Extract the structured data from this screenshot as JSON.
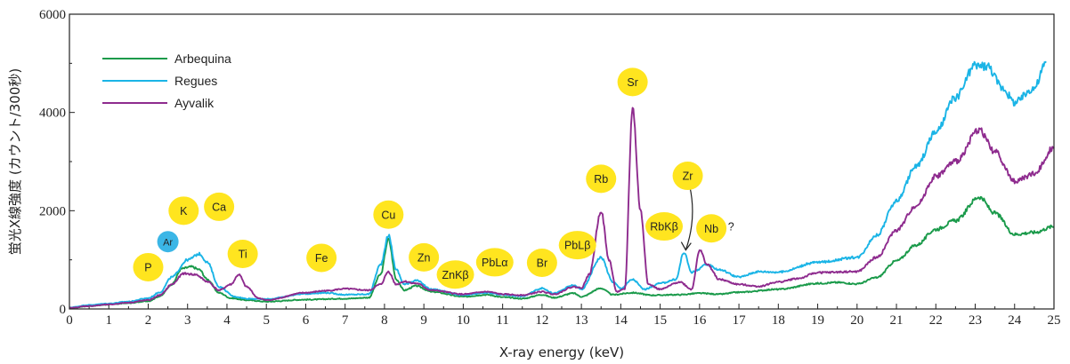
{
  "chart_data": {
    "type": "line",
    "xlabel": "X-ray energy (keV)",
    "ylabel": "蛍光X線強度 (カウント/300秒)",
    "xlim": [
      0,
      25
    ],
    "ylim": [
      0,
      6000
    ],
    "x_ticks": [
      "0",
      "1",
      "2",
      "3",
      "4",
      "5",
      "6",
      "7",
      "8",
      "9",
      "10",
      "11",
      "12",
      "13",
      "14",
      "15",
      "16",
      "17",
      "18",
      "19",
      "20",
      "21",
      "22",
      "23",
      "24",
      "25"
    ],
    "y_ticks": [
      "0",
      "2000",
      "4000",
      "6000"
    ],
    "legend_position": "top-left",
    "series": [
      {
        "name": "Arbequina",
        "color": "#1a9a4a",
        "points": [
          [
            0,
            20
          ],
          [
            0.5,
            60
          ],
          [
            1,
            90
          ],
          [
            1.5,
            120
          ],
          [
            2,
            160
          ],
          [
            2.3,
            260
          ],
          [
            2.6,
            500
          ],
          [
            2.85,
            820
          ],
          [
            3.1,
            860
          ],
          [
            3.3,
            800
          ],
          [
            3.5,
            600
          ],
          [
            3.8,
            330
          ],
          [
            4.1,
            220
          ],
          [
            4.5,
            180
          ],
          [
            5,
            150
          ],
          [
            6,
            190
          ],
          [
            7,
            210
          ],
          [
            7.6,
            230
          ],
          [
            7.9,
            700
          ],
          [
            8.1,
            1420
          ],
          [
            8.3,
            600
          ],
          [
            8.5,
            380
          ],
          [
            8.8,
            470
          ],
          [
            9.2,
            350
          ],
          [
            10,
            250
          ],
          [
            10.6,
            290
          ],
          [
            11,
            240
          ],
          [
            11.5,
            210
          ],
          [
            12,
            290
          ],
          [
            12.3,
            230
          ],
          [
            12.8,
            320
          ],
          [
            13,
            250
          ],
          [
            13.5,
            420
          ],
          [
            13.8,
            290
          ],
          [
            14.3,
            330
          ],
          [
            14.8,
            280
          ],
          [
            15.5,
            290
          ],
          [
            16,
            320
          ],
          [
            16.5,
            300
          ],
          [
            17,
            340
          ],
          [
            18,
            400
          ],
          [
            19,
            520
          ],
          [
            19.5,
            540
          ],
          [
            20,
            510
          ],
          [
            20.5,
            640
          ],
          [
            21,
            980
          ],
          [
            21.5,
            1300
          ],
          [
            22,
            1620
          ],
          [
            22.5,
            1800
          ],
          [
            23.1,
            2280
          ],
          [
            23.5,
            1950
          ],
          [
            24,
            1520
          ],
          [
            24.5,
            1560
          ],
          [
            25,
            1680
          ]
        ]
      },
      {
        "name": "Regues",
        "color": "#1ab4e6",
        "points": [
          [
            0,
            30
          ],
          [
            0.5,
            80
          ],
          [
            1,
            110
          ],
          [
            1.5,
            150
          ],
          [
            2,
            220
          ],
          [
            2.3,
            340
          ],
          [
            2.6,
            650
          ],
          [
            3,
            1000
          ],
          [
            3.3,
            1120
          ],
          [
            3.5,
            950
          ],
          [
            3.8,
            450
          ],
          [
            4.2,
            250
          ],
          [
            4.5,
            210
          ],
          [
            5,
            200
          ],
          [
            6,
            310
          ],
          [
            6.5,
            330
          ],
          [
            7,
            290
          ],
          [
            7.6,
            300
          ],
          [
            7.9,
            900
          ],
          [
            8.1,
            1500
          ],
          [
            8.3,
            800
          ],
          [
            8.5,
            500
          ],
          [
            8.8,
            580
          ],
          [
            9.2,
            400
          ],
          [
            10,
            280
          ],
          [
            10.6,
            330
          ],
          [
            11,
            290
          ],
          [
            11.5,
            260
          ],
          [
            12,
            420
          ],
          [
            12.3,
            320
          ],
          [
            12.8,
            480
          ],
          [
            13,
            400
          ],
          [
            13.5,
            1050
          ],
          [
            13.8,
            550
          ],
          [
            14,
            420
          ],
          [
            14.3,
            600
          ],
          [
            14.6,
            400
          ],
          [
            15,
            520
          ],
          [
            15.4,
            600
          ],
          [
            15.6,
            1150
          ],
          [
            15.8,
            750
          ],
          [
            16.2,
            900
          ],
          [
            16.5,
            800
          ],
          [
            17,
            650
          ],
          [
            17.5,
            760
          ],
          [
            18,
            750
          ],
          [
            19,
            950
          ],
          [
            20,
            1050
          ],
          [
            20.5,
            1500
          ],
          [
            21,
            2200
          ],
          [
            21.5,
            2900
          ],
          [
            22,
            3600
          ],
          [
            22.5,
            4300
          ],
          [
            23,
            4950
          ],
          [
            23.3,
            4950
          ],
          [
            23.7,
            4500
          ],
          [
            24,
            4200
          ],
          [
            24.5,
            4500
          ],
          [
            24.8,
            5000
          ]
        ]
      },
      {
        "name": "Ayvalik",
        "color": "#8e2b8e",
        "points": [
          [
            0,
            20
          ],
          [
            0.5,
            60
          ],
          [
            1,
            90
          ],
          [
            1.5,
            130
          ],
          [
            2,
            180
          ],
          [
            2.3,
            280
          ],
          [
            2.6,
            500
          ],
          [
            2.9,
            720
          ],
          [
            3.2,
            700
          ],
          [
            3.5,
            560
          ],
          [
            3.8,
            380
          ],
          [
            4.1,
            500
          ],
          [
            4.3,
            700
          ],
          [
            4.5,
            450
          ],
          [
            4.8,
            220
          ],
          [
            5,
            180
          ],
          [
            6,
            330
          ],
          [
            6.5,
            370
          ],
          [
            7,
            410
          ],
          [
            7.6,
            380
          ],
          [
            7.9,
            500
          ],
          [
            8.1,
            760
          ],
          [
            8.3,
            500
          ],
          [
            8.5,
            560
          ],
          [
            8.8,
            520
          ],
          [
            9.2,
            380
          ],
          [
            10,
            300
          ],
          [
            10.6,
            350
          ],
          [
            11,
            300
          ],
          [
            11.5,
            280
          ],
          [
            12,
            350
          ],
          [
            12.3,
            300
          ],
          [
            12.8,
            450
          ],
          [
            13,
            430
          ],
          [
            13.2,
            700
          ],
          [
            13.5,
            2000
          ],
          [
            13.7,
            1000
          ],
          [
            13.9,
            350
          ],
          [
            14.1,
            400
          ],
          [
            14.3,
            4100
          ],
          [
            14.5,
            2000
          ],
          [
            14.7,
            500
          ],
          [
            15,
            400
          ],
          [
            15.5,
            550
          ],
          [
            15.8,
            400
          ],
          [
            16,
            1200
          ],
          [
            16.2,
            900
          ],
          [
            16.5,
            600
          ],
          [
            17,
            500
          ],
          [
            17.5,
            460
          ],
          [
            18,
            550
          ],
          [
            18.5,
            620
          ],
          [
            19,
            740
          ],
          [
            20,
            760
          ],
          [
            20.5,
            1050
          ],
          [
            21,
            1600
          ],
          [
            21.5,
            2100
          ],
          [
            22,
            2700
          ],
          [
            22.5,
            3000
          ],
          [
            23.1,
            3650
          ],
          [
            23.5,
            3200
          ],
          [
            24,
            2600
          ],
          [
            24.5,
            2750
          ],
          [
            25,
            3300
          ]
        ]
      }
    ],
    "annotations": [
      {
        "label": "P",
        "x": 2.0,
        "y": 850,
        "color": "#ffe51f"
      },
      {
        "label": "Ar",
        "x": 2.5,
        "y": 1370,
        "color": "#3bb6e6"
      },
      {
        "label": "K",
        "x": 2.9,
        "y": 2000,
        "color": "#ffe51f"
      },
      {
        "label": "Ca",
        "x": 3.8,
        "y": 2080,
        "color": "#ffe51f"
      },
      {
        "label": "Ti",
        "x": 4.4,
        "y": 1120,
        "color": "#ffe51f"
      },
      {
        "label": "Fe",
        "x": 6.4,
        "y": 1040,
        "color": "#ffe51f"
      },
      {
        "label": "Cu",
        "x": 8.1,
        "y": 1920,
        "color": "#ffe51f"
      },
      {
        "label": "Zn",
        "x": 9.0,
        "y": 1050,
        "color": "#ffe51f"
      },
      {
        "label": "ZnKβ",
        "x": 9.8,
        "y": 700,
        "color": "#ffe51f"
      },
      {
        "label": "PbLα",
        "x": 10.8,
        "y": 950,
        "color": "#ffe51f"
      },
      {
        "label": "Br",
        "x": 12.0,
        "y": 940,
        "color": "#ffe51f"
      },
      {
        "label": "PbLβ",
        "x": 12.9,
        "y": 1300,
        "color": "#ffe51f"
      },
      {
        "label": "Rb",
        "x": 13.5,
        "y": 2650,
        "color": "#ffe51f"
      },
      {
        "label": "Sr",
        "x": 14.3,
        "y": 4620,
        "color": "#ffe51f"
      },
      {
        "label": "RbKβ",
        "x": 15.1,
        "y": 1680,
        "color": "#ffe51f"
      },
      {
        "label": "Zr",
        "x": 15.7,
        "y": 2710,
        "color": "#ffe51f"
      },
      {
        "label": "Nb",
        "x": 16.3,
        "y": 1640,
        "color": "#ffe51f"
      },
      {
        "label": "?",
        "x": 16.8,
        "y": 1680,
        "color": ""
      }
    ],
    "arrow": {
      "from": [
        15.75,
        2500
      ],
      "to": [
        15.65,
        1200
      ]
    }
  }
}
